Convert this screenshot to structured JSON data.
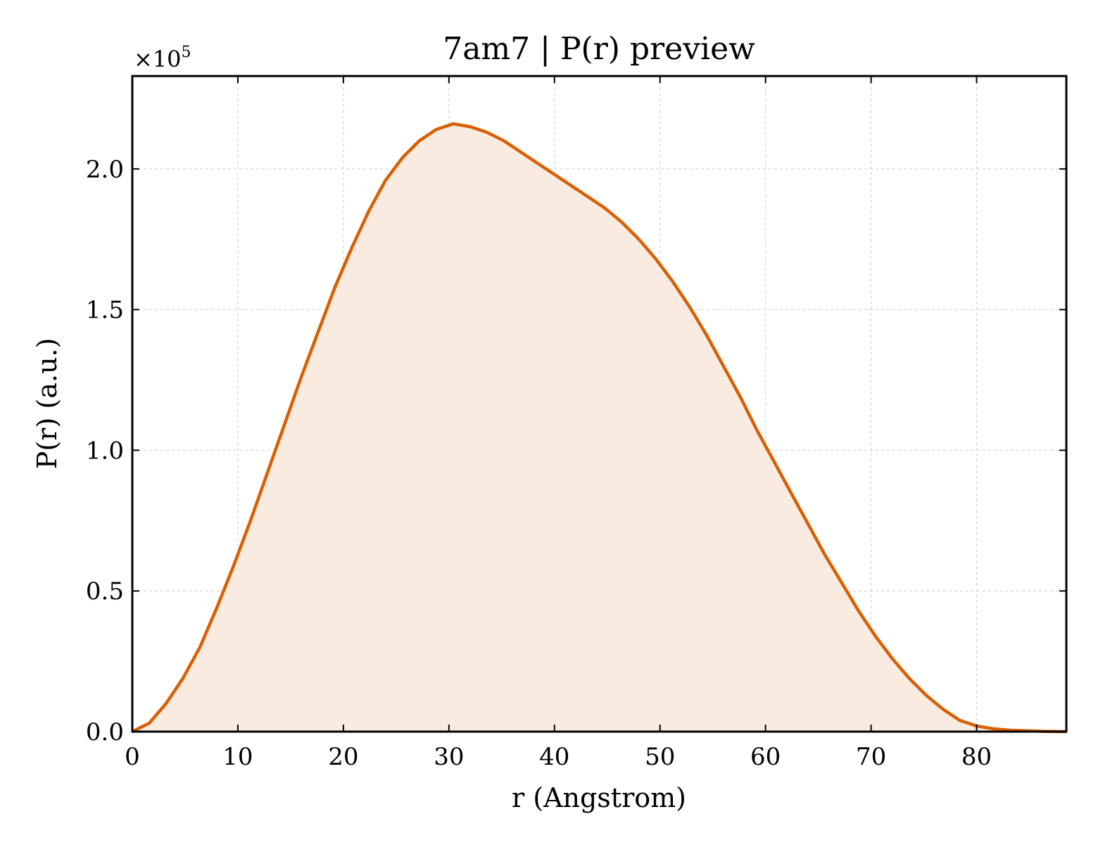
{
  "chart_data": {
    "type": "area",
    "title": "7am7 | P(r) preview",
    "xlabel": "r (Angstrom)",
    "ylabel": "P(r) (a.u.)",
    "y_multiplier_label": "×10",
    "y_multiplier_exp": "5",
    "xlim": [
      0,
      88.5
    ],
    "ylim": [
      0,
      2.33
    ],
    "x_ticks": [
      0,
      10,
      20,
      30,
      40,
      50,
      60,
      70,
      80
    ],
    "x_tick_labels": [
      "0",
      "10",
      "20",
      "30",
      "40",
      "50",
      "60",
      "70",
      "80"
    ],
    "y_ticks": [
      0,
      0.5,
      1.0,
      1.5,
      2.0
    ],
    "y_tick_labels": [
      "0.0",
      "0.5",
      "1.0",
      "1.5",
      "2.0"
    ],
    "grid": true,
    "line_color": "#d95f02",
    "fill_color": "#f9ebe0",
    "series": [
      {
        "x": [
          0,
          1.6,
          3.2,
          4.8,
          6.4,
          8.0,
          9.6,
          11.2,
          12.8,
          14.4,
          16.0,
          17.6,
          19.2,
          20.8,
          22.4,
          24.0,
          25.6,
          27.2,
          28.8,
          30.4,
          32.0,
          33.6,
          35.2,
          36.8,
          38.4,
          40.0,
          41.6,
          43.2,
          44.8,
          46.4,
          48.0,
          49.6,
          51.2,
          52.8,
          54.4,
          56.0,
          57.6,
          59.2,
          60.8,
          62.4,
          64.0,
          65.6,
          67.2,
          68.8,
          70.4,
          72.0,
          73.6,
          75.2,
          76.8,
          78.4,
          80.0,
          81.6,
          83.2,
          84.8,
          86.4,
          88.5
        ],
        "y": [
          0.0,
          0.03,
          0.1,
          0.19,
          0.3,
          0.44,
          0.59,
          0.75,
          0.92,
          1.09,
          1.26,
          1.42,
          1.58,
          1.72,
          1.85,
          1.96,
          2.04,
          2.1,
          2.14,
          2.16,
          2.15,
          2.13,
          2.1,
          2.06,
          2.02,
          1.98,
          1.94,
          1.9,
          1.86,
          1.81,
          1.75,
          1.68,
          1.6,
          1.51,
          1.41,
          1.3,
          1.19,
          1.07,
          0.96,
          0.85,
          0.74,
          0.63,
          0.53,
          0.43,
          0.34,
          0.26,
          0.19,
          0.13,
          0.08,
          0.04,
          0.02,
          0.01,
          0.005,
          0.003,
          0.001,
          0.0
        ]
      }
    ]
  }
}
